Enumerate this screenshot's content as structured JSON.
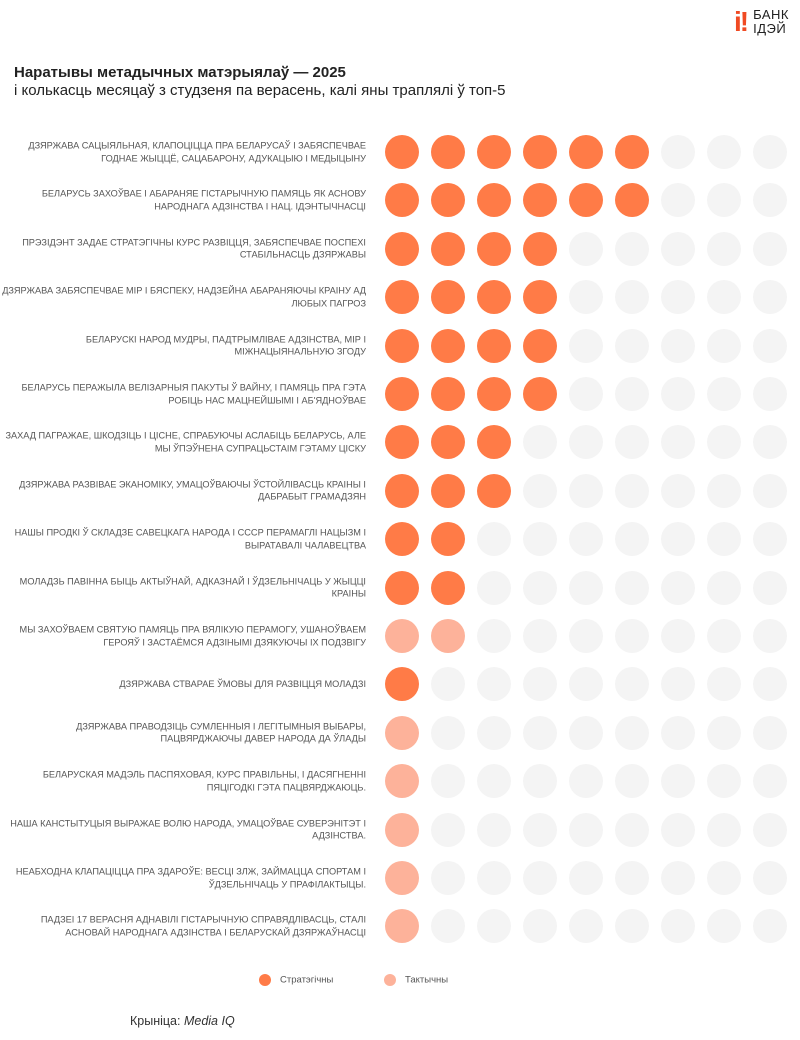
{
  "logo": {
    "line1": "БАНК",
    "line2": "ІДЭЙ",
    "mark": "i!"
  },
  "header": {
    "title": "Наратывы метадычных матэрыялаў — 2025",
    "subtitle": "і колькасць месяцаў з студзеня па верасень, калі яны траплялі ў топ-5"
  },
  "colors": {
    "strategic": "#FF7B47",
    "tactical": "#FDB29A",
    "empty": "#F4F4F4"
  },
  "chart_data": {
    "type": "dot-matrix",
    "title": "Наратывы метадычных матэрыялаў — 2025",
    "max_months": 9,
    "legend": [
      {
        "key": "strategic",
        "label": "Стратэгічны"
      },
      {
        "key": "tactical",
        "label": "Тактычны"
      }
    ],
    "legend_placement": "bottom",
    "rows": [
      {
        "label": "Дзяржава сацыяльная, клапоціцца пра беларусаў і забяспечвае годнае жыццё, сацабарону, адукацыю і медыцыну",
        "months": 6,
        "type": "strategic"
      },
      {
        "label": "Беларусь захоўвае і абараняе гістарычную памяць як аснову народнага адзінства і нац. ідэнтычнасці",
        "months": 6,
        "type": "strategic"
      },
      {
        "label": "Прэзідэнт задае стратэгічны курс развіцця, забяспечвае поспехі стабільнасць дзяржавы",
        "months": 4,
        "type": "strategic"
      },
      {
        "label": "Дзяржава забяспечвае мір і бяспеку, надзейна абараняючы краіну ад любых пагроз",
        "months": 4,
        "type": "strategic"
      },
      {
        "label": "Беларускі народ мудры, падтрымлівае адзінства, мір і міжнацыянальную згоду",
        "months": 4,
        "type": "strategic"
      },
      {
        "label": "Беларусь перажыла велізарныя пакуты ў вайну, і памяць пра гэта робіць нас мацнейшымі і аб'ядноўвае",
        "months": 4,
        "type": "strategic"
      },
      {
        "label": "Захад пагражае, шкодзіць і ціснe, спрабуючы аслабіць Беларусь, але мы ўпэўнена супрацьстаім гэтаму ціску",
        "months": 3,
        "type": "strategic"
      },
      {
        "label": "Дзяржава развівае эканоміку, умацоўваючы ўстойлівасць краіны і дабрабыт грамадзян",
        "months": 3,
        "type": "strategic"
      },
      {
        "label": "Нашы продкі ў складзе савецкага народа і СССР перамаглі нацызм і выратавалі чалавецтва",
        "months": 2,
        "type": "strategic"
      },
      {
        "label": "Моладзь павінна быць актыўнай, адказнай і ўдзельнічаць у жыцці краіны",
        "months": 2,
        "type": "strategic"
      },
      {
        "label": "Мы захоўваем святую памяць пра Вялікую Перамогу, ушаноўваем герояў і застаёмся адзінымі дзякуючы іх подзвігу",
        "months": 2,
        "type": "tactical"
      },
      {
        "label": "Дзяржава стварае ўмовы для развіцця моладзі",
        "months": 1,
        "type": "strategic"
      },
      {
        "label": "Дзяржава праводзіць сумленныя і легітымныя выбары, пацвярджаючы давер народа да ўлады",
        "months": 1,
        "type": "tactical"
      },
      {
        "label": "Беларуская мадэль паспяховая, курс правільны, і дасягненні пяцігодкі гэта пацвярджаюць.",
        "months": 1,
        "type": "tactical"
      },
      {
        "label": "Наша Канстытуцыя выражае волю народа, умацоўвае суверэнітэт і адзінства.",
        "months": 1,
        "type": "tactical"
      },
      {
        "label": "Неабходна клапаціцца пра здароўе: весці ЗЛЖ, займацца спортам і ўдзельнічаць у прафілактыцы.",
        "months": 1,
        "type": "tactical"
      },
      {
        "label": "Падзеі 17 верасня аднавілі гістарычную справядлівасць, сталі асновай народнага адзінства і беларускай дзяржаўнасці",
        "months": 1,
        "type": "tactical"
      }
    ]
  },
  "footer": {
    "source_prefix": "Крыніца: ",
    "source_name": "Media IQ"
  }
}
